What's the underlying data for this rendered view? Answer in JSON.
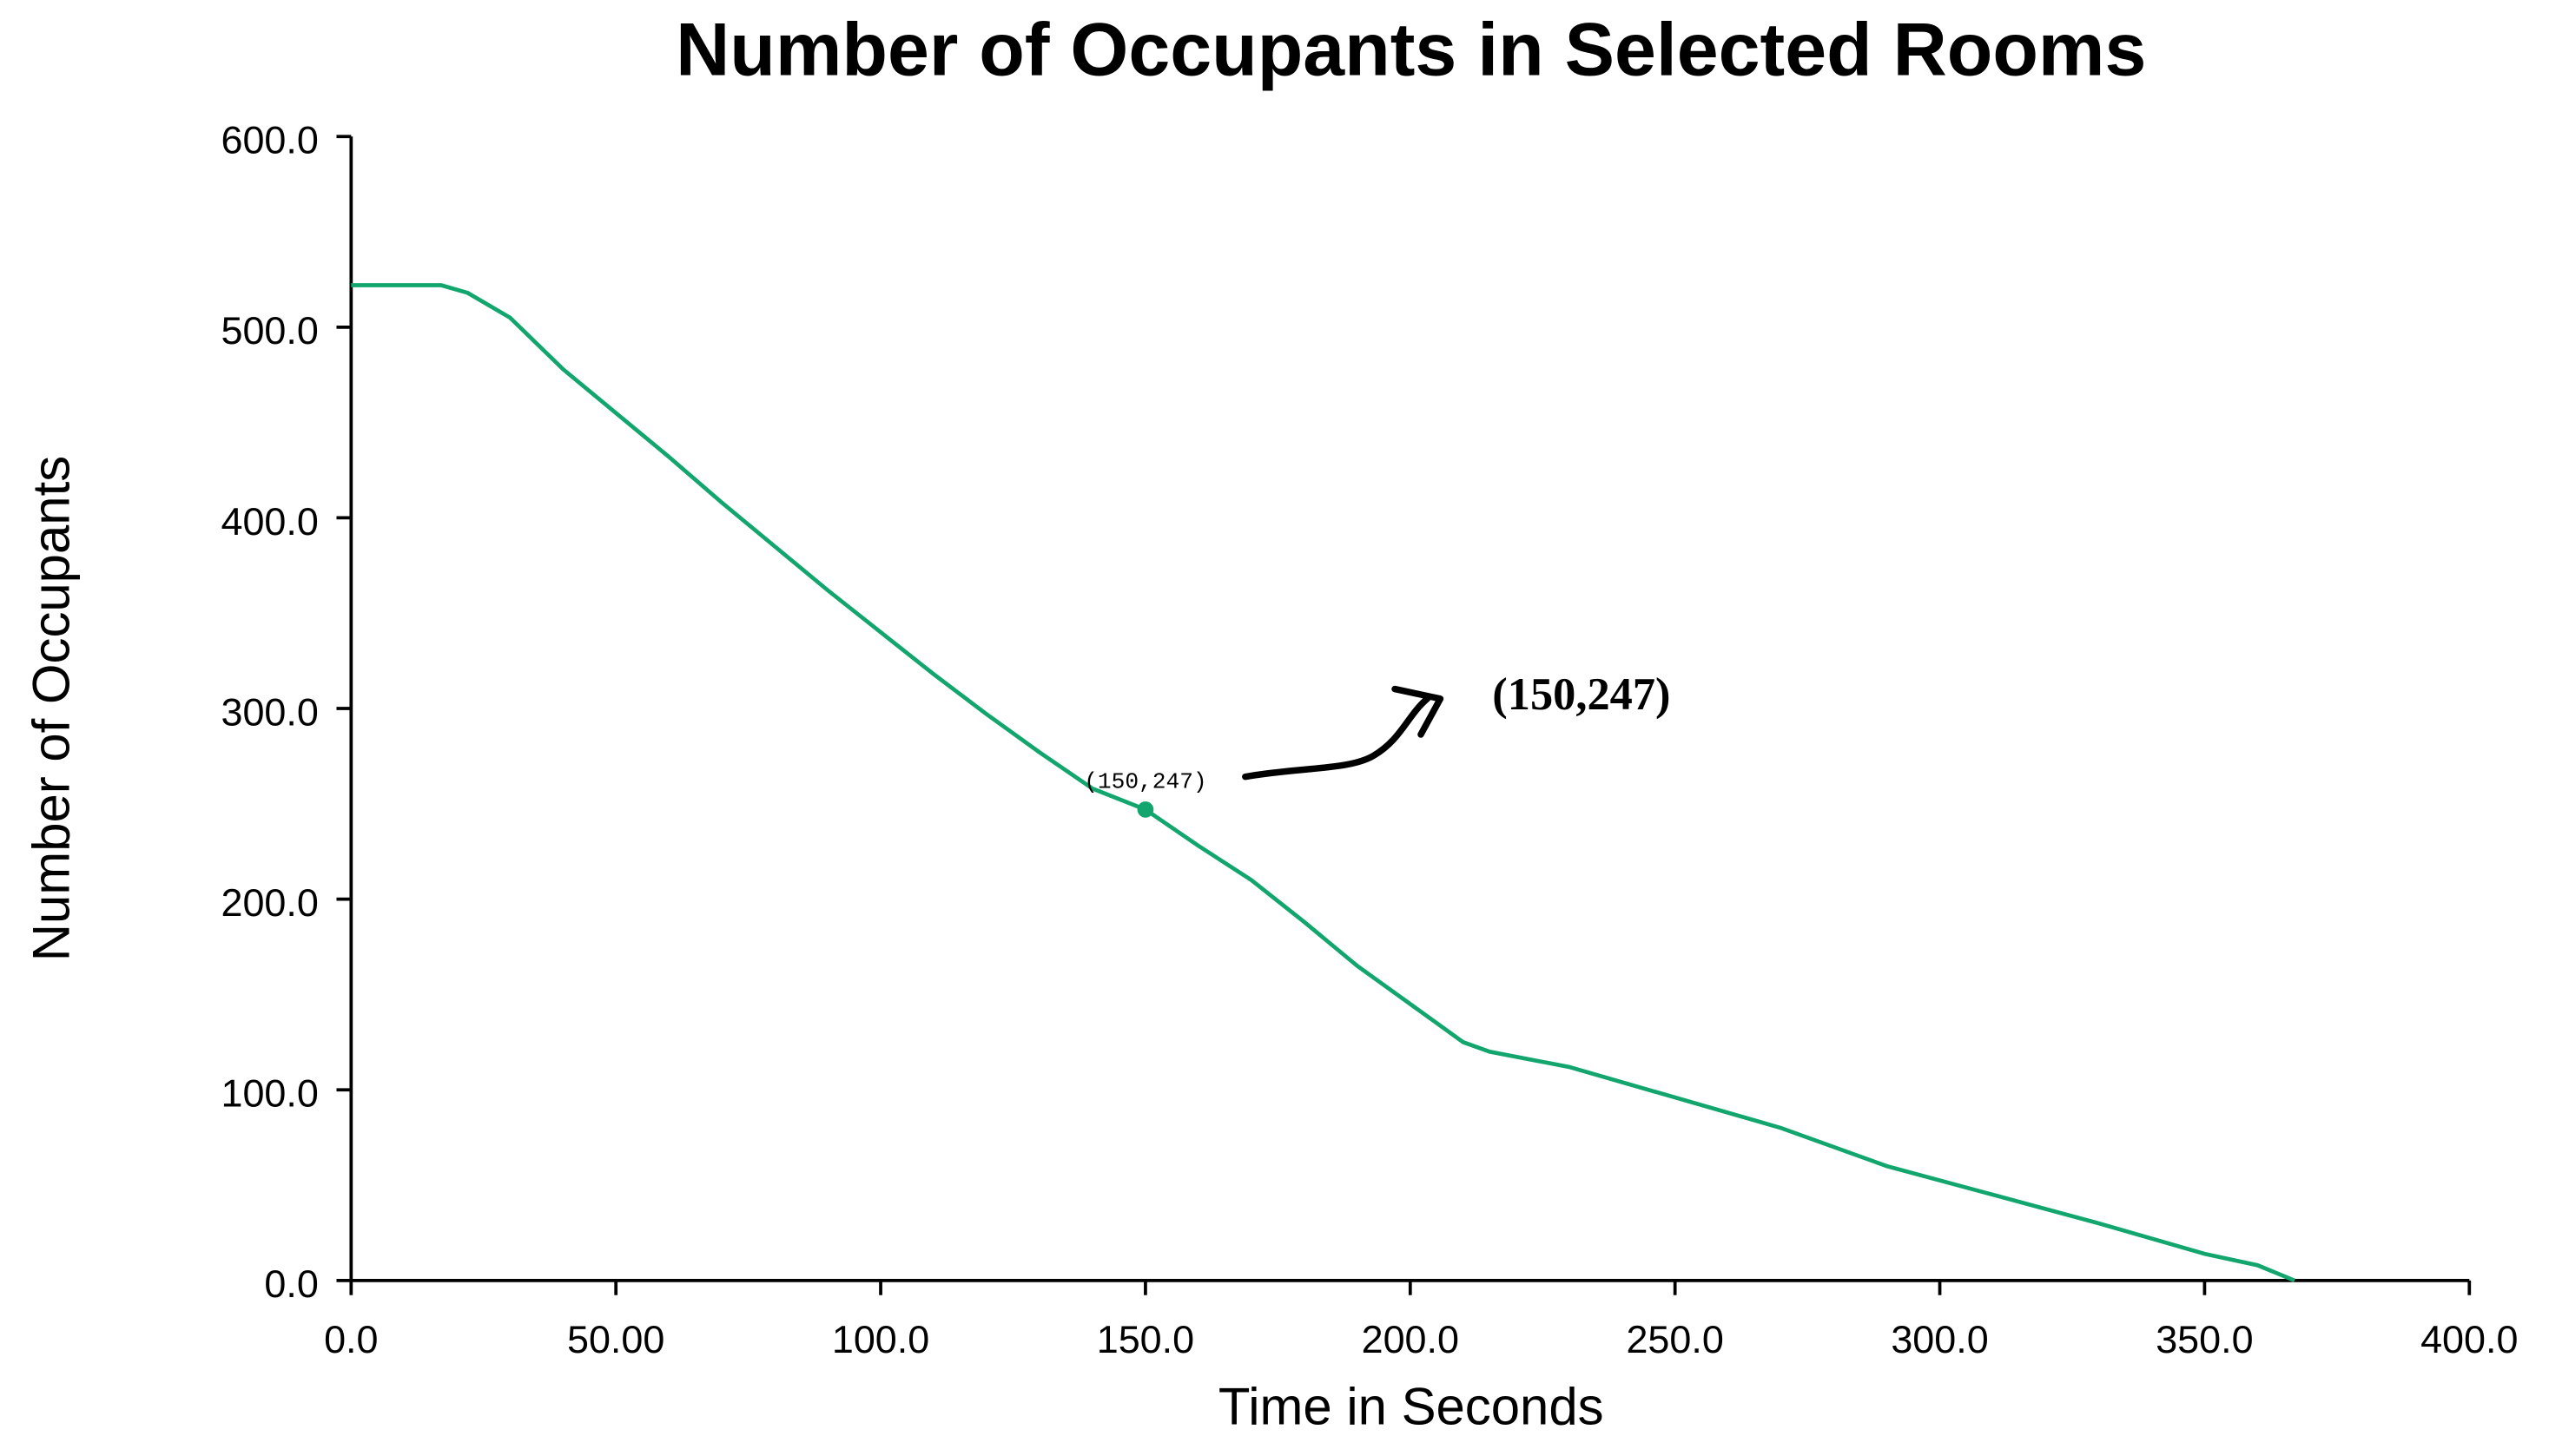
{
  "chart_data": {
    "type": "line",
    "title": "Number of Occupants in Selected Rooms",
    "x_label": "Time in Seconds",
    "y_label": "Number of Occupants",
    "x": [
      0,
      17,
      22,
      30,
      40,
      50,
      60,
      70,
      80,
      90,
      100,
      110,
      120,
      130,
      140,
      150,
      160,
      170,
      180,
      190,
      200,
      210,
      215,
      230,
      250,
      270,
      290,
      310,
      330,
      350,
      360,
      367
    ],
    "values": [
      522,
      522,
      518,
      505,
      478,
      455,
      432,
      408,
      385,
      362,
      340,
      318,
      297,
      277,
      258,
      247,
      228,
      210,
      188,
      165,
      145,
      125,
      120,
      112,
      96,
      80,
      60,
      45,
      30,
      14,
      8,
      0
    ],
    "color": "#12a66e",
    "xlim": [
      0,
      400
    ],
    "ylim": [
      0,
      600
    ],
    "xticks": [
      {
        "value": 0,
        "label": "0.0"
      },
      {
        "value": 50,
        "label": "50.00"
      },
      {
        "value": 100,
        "label": "100.0"
      },
      {
        "value": 150,
        "label": "150.0"
      },
      {
        "value": 200,
        "label": "200.0"
      },
      {
        "value": 250,
        "label": "250.0"
      },
      {
        "value": 300,
        "label": "300.0"
      },
      {
        "value": 350,
        "label": "350.0"
      },
      {
        "value": 400,
        "label": "400.0"
      }
    ],
    "yticks": [
      {
        "value": 0,
        "label": "0.0"
      },
      {
        "value": 100,
        "label": "100.0"
      },
      {
        "value": 200,
        "label": "200.0"
      },
      {
        "value": 300,
        "label": "300.0"
      },
      {
        "value": 400,
        "label": "400.0"
      },
      {
        "value": 500,
        "label": "500.0"
      },
      {
        "value": 600,
        "label": "600.0"
      }
    ],
    "highlight": {
      "x": 150,
      "y": 247,
      "label": "(150,247)"
    },
    "annotation": "(150,247)"
  }
}
